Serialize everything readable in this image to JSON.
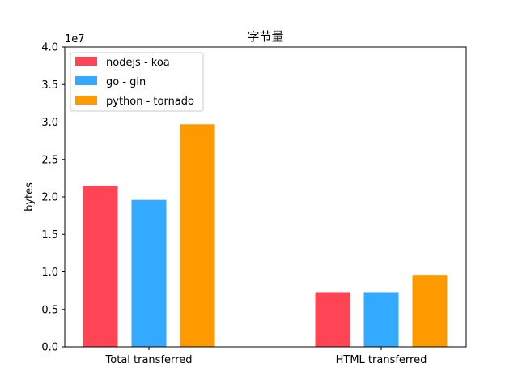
{
  "chart_data": {
    "type": "bar",
    "title": "字节量",
    "xlabel": "",
    "ylabel": "bytes",
    "y_offset_label": "1e7",
    "categories": [
      "Total transferred",
      "HTML transferred"
    ],
    "series": [
      {
        "name": "nodejs - koa",
        "color": "#ff4455",
        "values": [
          21500000.0,
          7300000.0
        ]
      },
      {
        "name": "go - gin",
        "color": "#33aaff",
        "values": [
          19600000.0,
          7300000.0
        ]
      },
      {
        "name": "python - tornado",
        "color": "#ff9900",
        "values": [
          29700000.0,
          9600000.0
        ]
      }
    ],
    "ylim": [
      0,
      40000000.0
    ],
    "yticks": [
      "0.0",
      "0.5",
      "1.0",
      "1.5",
      "2.0",
      "2.5",
      "3.0",
      "3.5",
      "4.0"
    ],
    "grid": false,
    "legend_position": "top-left"
  }
}
